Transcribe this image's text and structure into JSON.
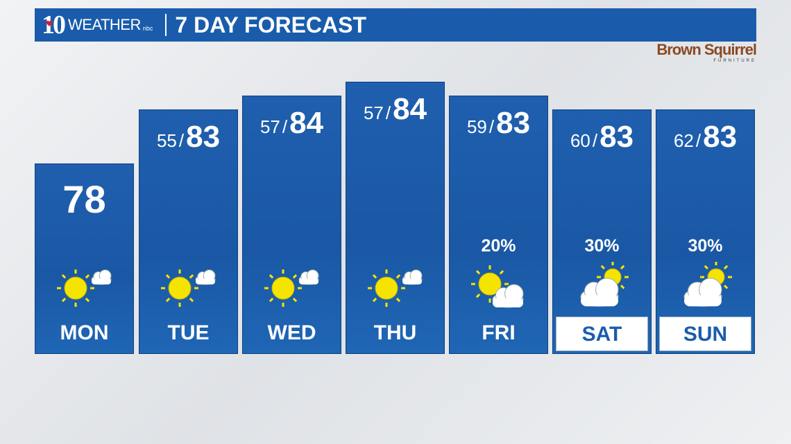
{
  "header": {
    "logo_number": "10",
    "logo_text": "WEATHER",
    "network": "nbc",
    "title": "7 DAY FORECAST"
  },
  "sponsor": {
    "name": "Brown Squirrel",
    "sub": "FURNITURE"
  },
  "days": [
    {
      "day": "MON",
      "current": "78",
      "icon": "sun-small-cloud-icon"
    },
    {
      "day": "TUE",
      "low": "55",
      "high": "83",
      "icon": "sun-small-cloud-icon"
    },
    {
      "day": "WED",
      "low": "57",
      "high": "84",
      "icon": "sun-small-cloud-icon"
    },
    {
      "day": "THU",
      "low": "57",
      "high": "84",
      "icon": "sun-small-cloud-icon"
    },
    {
      "day": "FRI",
      "low": "59",
      "high": "83",
      "precip": "20%",
      "icon": "partly-sunny-icon"
    },
    {
      "day": "SAT",
      "low": "60",
      "high": "83",
      "precip": "30%",
      "icon": "mostly-cloudy-icon"
    },
    {
      "day": "SUN",
      "low": "62",
      "high": "83",
      "precip": "30%",
      "icon": "mostly-cloudy-icon"
    }
  ],
  "colors": {
    "panel": "#1a5cab",
    "sun": "#f5e400",
    "text": "#ffffff",
    "sponsor": "#8a4a22"
  }
}
